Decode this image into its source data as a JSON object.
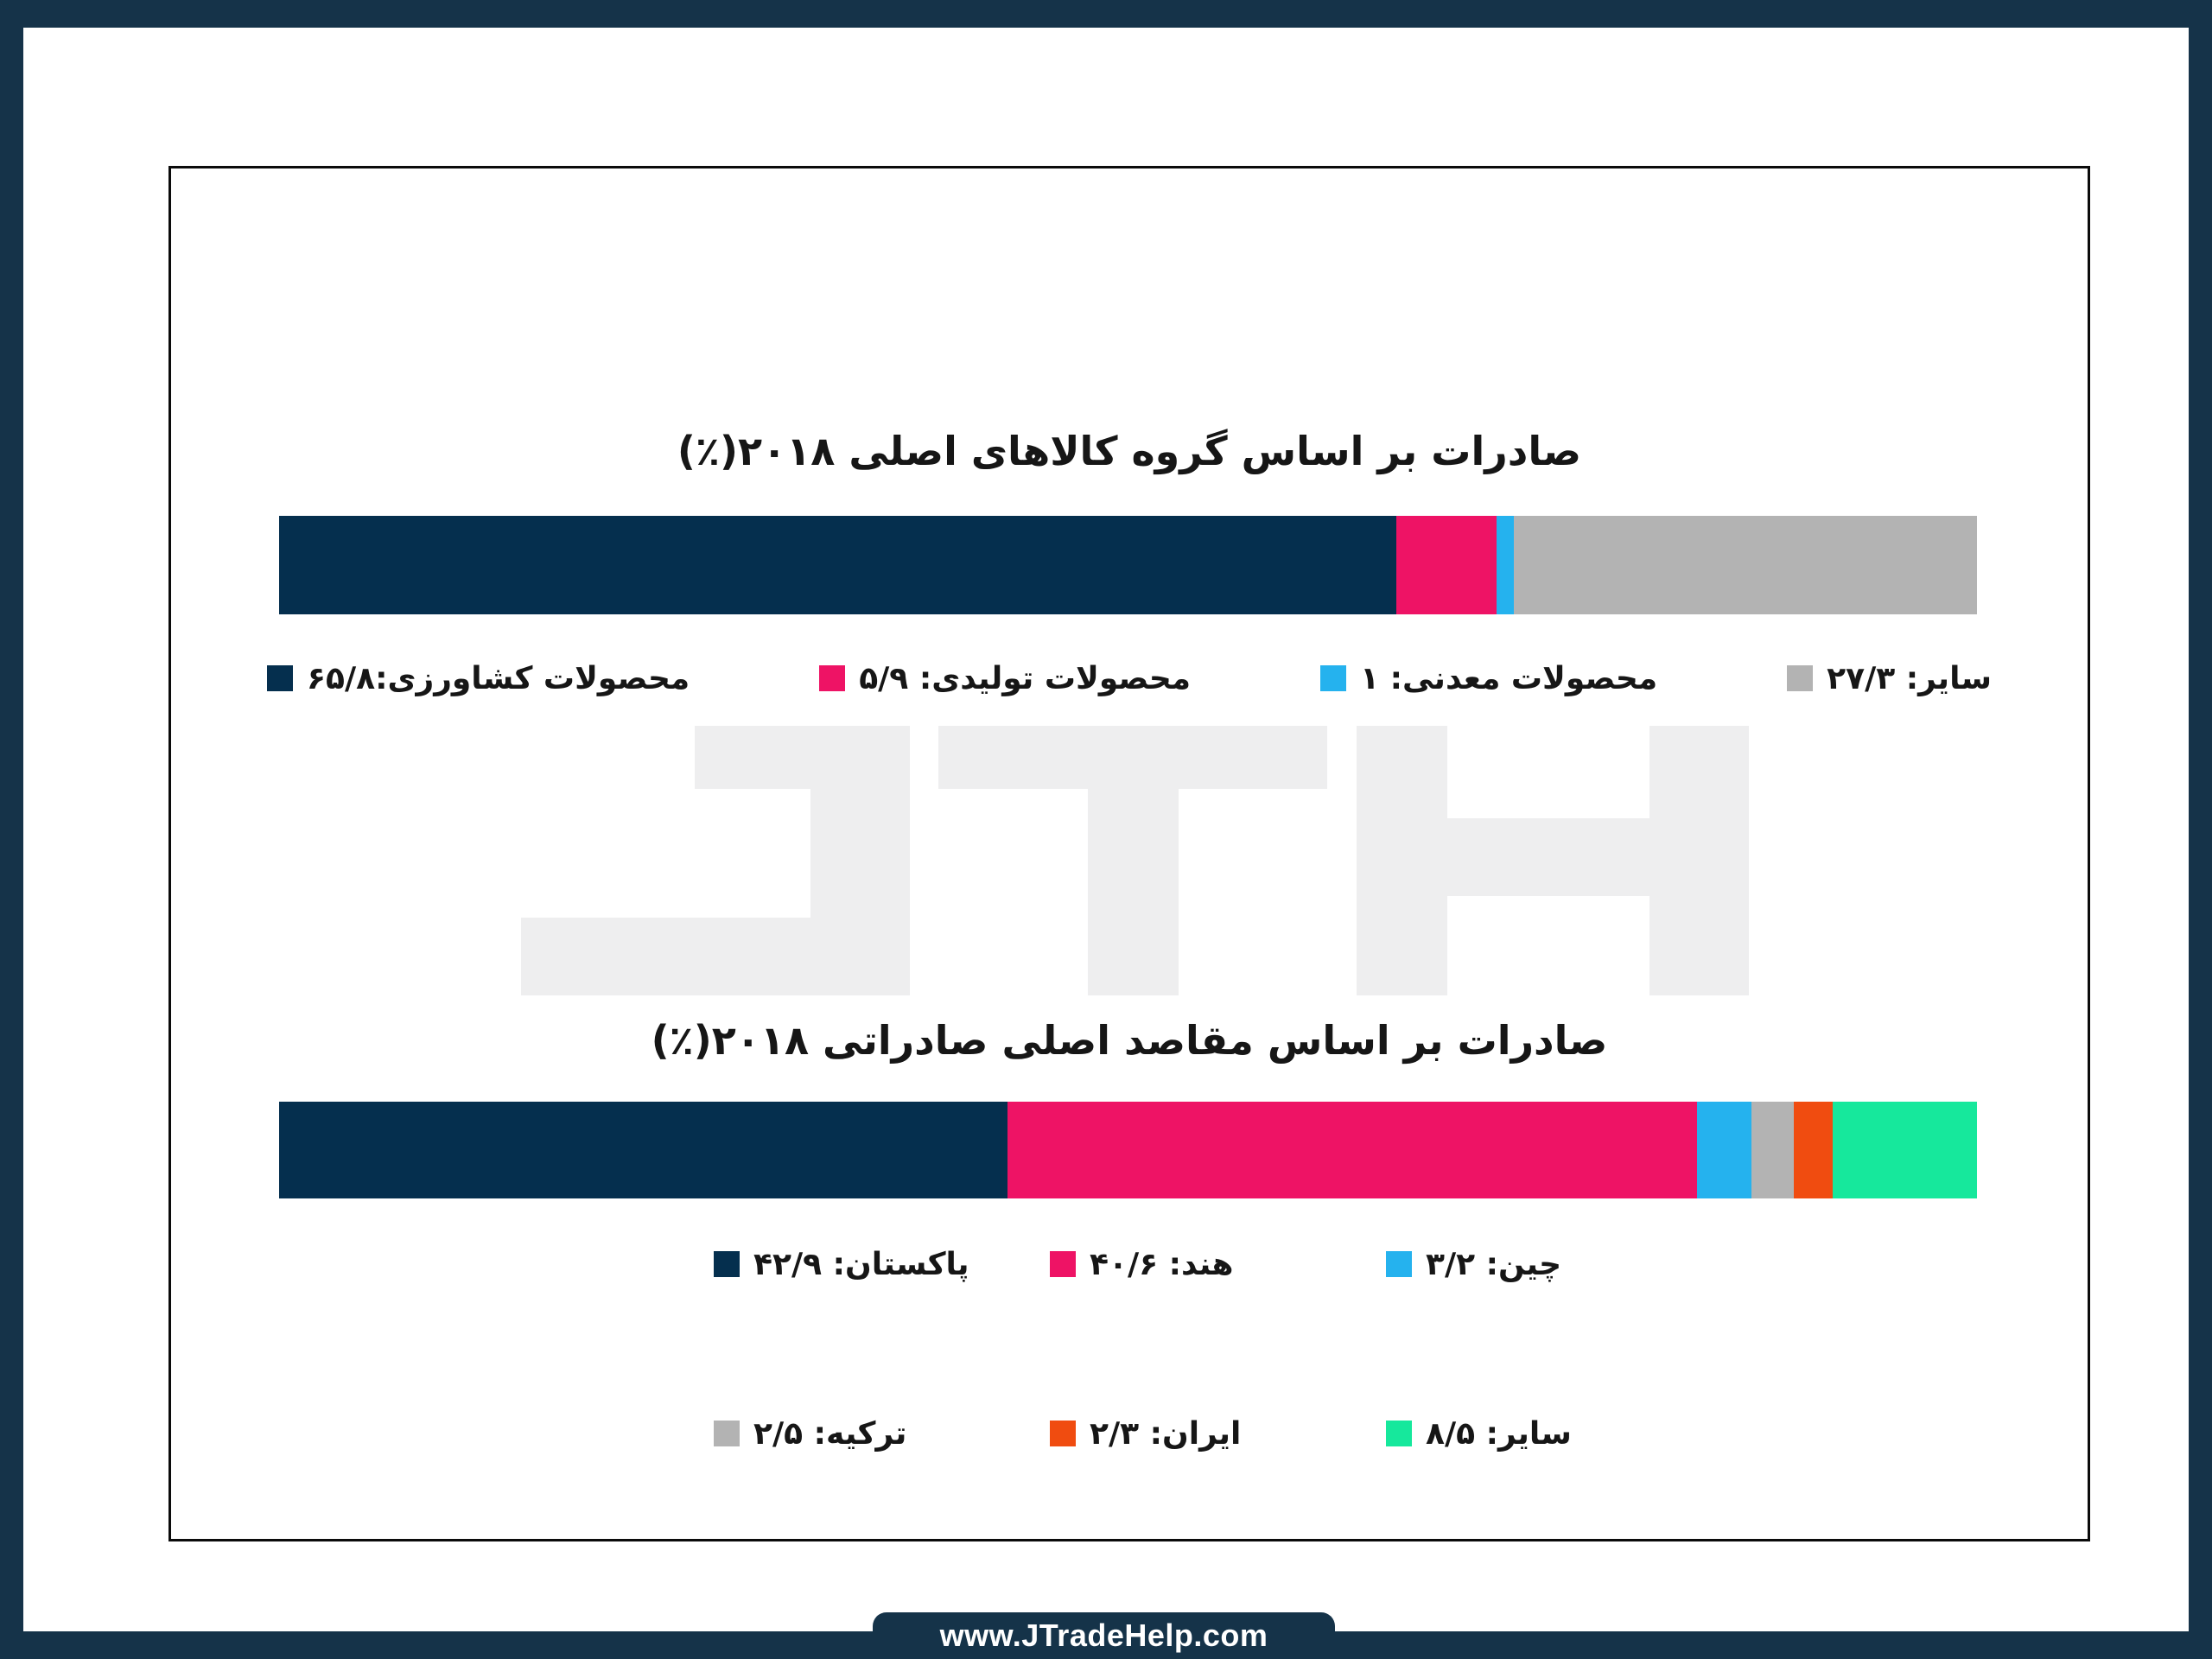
{
  "page": {
    "frame_color": "#153349",
    "background": "#ffffff",
    "box_border_color": "#0b0b0b"
  },
  "watermark": {
    "text": "JTH",
    "color": "#eeeeef"
  },
  "footer": {
    "url": "www.JTradeHelp.com",
    "background": "#153349",
    "text_color": "#ffffff"
  },
  "chart_data": [
    {
      "type": "bar",
      "orientation": "horizontal-stacked",
      "unit": "percent",
      "title": "صادرات بر اساس گروه کالاهای اصلی ۲۰۱۸(٪)",
      "legend_layout": "single-row",
      "segments": [
        {
          "key": "agricultural-products",
          "value": 65.8,
          "value_fa": "۶۵/۸",
          "legend": "محصولات کشاورزی:۶۵/۸",
          "color": "#052f4e"
        },
        {
          "key": "manufactured-products",
          "value": 5.9,
          "value_fa": "۵/۹",
          "legend": "محصولات تولیدی: ۵/۹",
          "color": "#ee1365"
        },
        {
          "key": "mineral-products",
          "value": 1,
          "value_fa": "۱",
          "legend": "محصولات معدنی: ۱",
          "color": "#25b2ee"
        },
        {
          "key": "other",
          "value": 27.3,
          "value_fa": "۲۷/۳",
          "legend": "سایر: ۲۷/۳",
          "color": "#b3b3b3"
        }
      ]
    },
    {
      "type": "bar",
      "orientation": "horizontal-stacked",
      "unit": "percent",
      "title": "صادرات بر اساس مقاصد اصلی صادراتی ۲۰۱۸(٪)",
      "legend_layout": "grid-3x2",
      "segments": [
        {
          "key": "pakistan",
          "value": 42.9,
          "value_fa": "۴۲/۹",
          "legend": "پاکستان: ۴۲/۹",
          "color": "#052f4e"
        },
        {
          "key": "india",
          "value": 40.6,
          "value_fa": "۴۰/۶",
          "legend": "هند: ۴۰/۶",
          "color": "#ee1365"
        },
        {
          "key": "china",
          "value": 3.2,
          "value_fa": "۳/۲",
          "legend": "چین: ۳/۲",
          "color": "#25b2ee"
        },
        {
          "key": "turkey",
          "value": 2.5,
          "value_fa": "۲/۵",
          "legend": "ترکیه: ۲/۵",
          "color": "#b3b3b3"
        },
        {
          "key": "iran",
          "value": 2.3,
          "value_fa": "۲/۳",
          "legend": "ایران: ۲/۳",
          "color": "#f04c10"
        },
        {
          "key": "other",
          "value": 8.5,
          "value_fa": "۸/۵",
          "legend": "سایر: ۸/۵",
          "color": "#16e89c"
        }
      ]
    }
  ]
}
